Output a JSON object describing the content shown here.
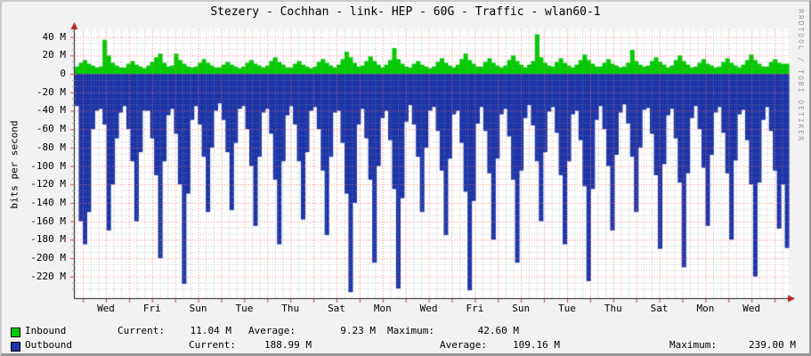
{
  "title": "Stezery - Cochhan - link- HEP - 60G - Traffic - wlan60-1",
  "watermark": "RRDTOOL / TOBI OETIKER",
  "colors": {
    "inbound": "#00CC00",
    "outbound": "#1C35A8",
    "grid_major": "#F46E6E",
    "grid_minor": "#9B9BA8",
    "axis": "#1A1A1A",
    "arrow": "#B22222",
    "background": "#F2F2F2",
    "plot_background": "#FFFFFF",
    "watermark_color": "#9A9A9A"
  },
  "y_axis": {
    "label": "bits per second",
    "ticks": [
      {
        "value": 40,
        "label": "40 M"
      },
      {
        "value": 20,
        "label": "20 M"
      },
      {
        "value": 0,
        "label": "0"
      },
      {
        "value": -20,
        "label": "-20 M"
      },
      {
        "value": -40,
        "label": "-40 M"
      },
      {
        "value": -60,
        "label": "-60 M"
      },
      {
        "value": -80,
        "label": "-80 M"
      },
      {
        "value": -100,
        "label": "-100 M"
      },
      {
        "value": -120,
        "label": "-120 M"
      },
      {
        "value": -140,
        "label": "-140 M"
      },
      {
        "value": -160,
        "label": "-160 M"
      },
      {
        "value": -180,
        "label": "-180 M"
      },
      {
        "value": -200,
        "label": "-200 M"
      },
      {
        "value": -220,
        "label": "-220 M"
      }
    ]
  },
  "x_axis": {
    "labels": [
      "Wed",
      "Fri",
      "Sun",
      "Tue",
      "Thu",
      "Sat",
      "Mon",
      "Wed",
      "Fri",
      "Sun",
      "Tue",
      "Thu",
      "Sat",
      "Mon",
      "Wed"
    ]
  },
  "legend": {
    "rows": [
      {
        "swatch_color": "#00CC00",
        "name": "Inbound",
        "items": [
          {
            "label": "Current:",
            "value": "11.04 M"
          },
          {
            "label": "Average:",
            "value": "9.23 M"
          },
          {
            "label": "Maximum:",
            "value": "42.60 M"
          }
        ]
      },
      {
        "swatch_color": "#1C35A8",
        "name": "Outbound",
        "items": [
          {
            "label": "Current:",
            "value": "188.99 M"
          },
          {
            "label": "Average:",
            "value": "109.16 M"
          },
          {
            "label": "Maximum:",
            "value": "239.00 M"
          }
        ]
      }
    ]
  },
  "chart_data": {
    "type": "area",
    "title": "Stezery - Cochhan - link- HEP - 60G - Traffic - wlan60-1",
    "ylabel": "bits per second",
    "ylim": [
      -243,
      48
    ],
    "y_major_step_M": 20,
    "x_tick_labels": [
      "Wed",
      "Fri",
      "Sun",
      "Tue",
      "Thu",
      "Sat",
      "Mon",
      "Wed",
      "Fri",
      "Sun",
      "Tue",
      "Thu",
      "Sat",
      "Mon",
      "Wed"
    ],
    "x_span_days": 30,
    "grid": "dotted, red majors (1 day / 20M), gray minors (8h / 6.7M)",
    "legend_position": "bottom-left",
    "series": [
      {
        "name": "Inbound",
        "color": "#00CC00",
        "plotted": "above zero line, Mbit/s",
        "stats": {
          "current": "11.04 M",
          "average": "9.23 M",
          "maximum": "42.60 M"
        },
        "values": [
          8,
          12,
          15,
          11,
          9,
          7,
          8,
          37,
          20,
          12,
          9,
          7,
          7,
          11,
          14,
          10,
          8,
          6,
          9,
          13,
          18,
          22,
          12,
          8,
          9,
          22,
          15,
          11,
          8,
          7,
          8,
          12,
          16,
          12,
          9,
          7,
          7,
          10,
          13,
          10,
          8,
          6,
          8,
          12,
          15,
          11,
          9,
          7,
          9,
          14,
          18,
          13,
          10,
          7,
          7,
          11,
          14,
          10,
          8,
          6,
          8,
          13,
          16,
          12,
          9,
          7,
          10,
          16,
          24,
          18,
          12,
          8,
          9,
          14,
          19,
          14,
          10,
          7,
          10,
          15,
          28,
          16,
          11,
          8,
          7,
          11,
          14,
          10,
          8,
          6,
          8,
          13,
          17,
          12,
          9,
          7,
          10,
          16,
          22,
          15,
          11,
          8,
          8,
          13,
          17,
          12,
          9,
          7,
          9,
          15,
          20,
          14,
          10,
          7,
          10,
          14,
          43,
          18,
          12,
          9,
          8,
          13,
          17,
          12,
          9,
          7,
          10,
          15,
          21,
          15,
          11,
          8,
          8,
          12,
          16,
          11,
          9,
          7,
          8,
          12,
          26,
          14,
          10,
          8,
          9,
          14,
          18,
          13,
          10,
          7,
          9,
          15,
          20,
          14,
          10,
          7,
          8,
          12,
          16,
          11,
          9,
          7,
          8,
          13,
          17,
          12,
          9,
          7,
          10,
          15,
          21,
          15,
          11,
          8,
          8,
          13,
          16,
          12,
          11,
          11
        ]
      },
      {
        "name": "Outbound",
        "color": "#1C35A8",
        "plotted": "below zero line (mirrored), Mbit/s magnitudes",
        "stats": {
          "current": "188.99 M",
          "average": "109.16 M",
          "maximum": "239.00 M"
        },
        "values": [
          35,
          160,
          185,
          150,
          60,
          40,
          38,
          55,
          170,
          120,
          70,
          42,
          35,
          60,
          95,
          160,
          85,
          40,
          40,
          70,
          110,
          200,
          95,
          45,
          38,
          65,
          120,
          228,
          130,
          50,
          35,
          55,
          90,
          150,
          80,
          40,
          32,
          50,
          85,
          148,
          75,
          38,
          35,
          60,
          100,
          165,
          90,
          42,
          38,
          65,
          115,
          185,
          95,
          45,
          35,
          55,
          95,
          158,
          85,
          40,
          36,
          60,
          105,
          175,
          90,
          42,
          40,
          75,
          130,
          237,
          140,
          55,
          38,
          70,
          115,
          205,
          100,
          48,
          40,
          72,
          125,
          233,
          135,
          52,
          34,
          55,
          90,
          150,
          80,
          40,
          36,
          62,
          105,
          175,
          92,
          44,
          40,
          75,
          128,
          235,
          138,
          54,
          36,
          62,
          108,
          180,
          92,
          44,
          38,
          68,
          115,
          205,
          105,
          48,
          34,
          56,
          95,
          160,
          85,
          41,
          36,
          64,
          110,
          185,
          95,
          44,
          40,
          72,
          122,
          225,
          125,
          50,
          35,
          60,
          100,
          170,
          88,
          42,
          33,
          54,
          90,
          150,
          80,
          39,
          37,
          65,
          110,
          190,
          98,
          45,
          38,
          70,
          118,
          210,
          108,
          48,
          35,
          60,
          102,
          165,
          88,
          42,
          36,
          64,
          108,
          180,
          94,
          44,
          39,
          72,
          120,
          220,
          118,
          50,
          36,
          62,
          105,
          168,
          120,
          189
        ]
      }
    ]
  }
}
